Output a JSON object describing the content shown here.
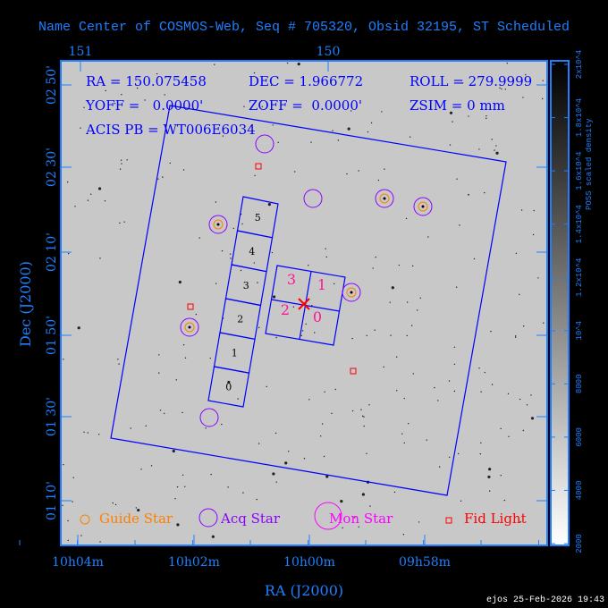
{
  "title": "Name Center of COSMOS-Web, Seq # 705320, Obsid 32195, ST Scheduled",
  "info": {
    "ra": "RA = 150.075458",
    "dec": "DEC = 1.966772",
    "roll": "ROLL = 279.9999",
    "yoff": "YOFF =   0.0000'",
    "zoff": "ZOFF =  0.0000'",
    "zsim": "ZSIM = 0 mm",
    "acis": "ACIS PB = WT006E6034"
  },
  "legend": {
    "guide": "Guide Star",
    "acq": "Acq Star",
    "mon": "Mon Star",
    "fid": "Fid Light"
  },
  "footer": "ejos 25-Feb-2026 19:43",
  "colors": {
    "axis": "#1e7fff",
    "field": "#0000ff",
    "guide": "#ff8000",
    "acq": "#8a00ff",
    "mon": "#ff00ff",
    "fid": "#ff0000"
  },
  "chart_data": {
    "type": "scatter",
    "title": "Name Center of COSMOS-Web, Seq # 705320, Obsid 32195, ST Scheduled",
    "xlabel": "RA (J2000)",
    "ylabel": "Dec (J2000)",
    "x_ticks": [
      "10h04m",
      "10h02m",
      "10h00m",
      "09h58m"
    ],
    "x_top_ticks": [
      "151",
      "150"
    ],
    "y_ticks": [
      "01 10'",
      "01 30'",
      "01 50'",
      "02 10'",
      "02 30'",
      "02 50'"
    ],
    "colorbar": {
      "label": "POSS scaled density",
      "ticks": [
        "2000",
        "4000",
        "6000",
        "8000",
        "10^4",
        "1.2x10^4",
        "1.4x10^4",
        "1.6x10^4",
        "1.8x10^4",
        "2x10^4"
      ],
      "range": [
        2000,
        20000
      ]
    },
    "acis_s_chips": [
      "0",
      "1",
      "2",
      "3",
      "4",
      "5"
    ],
    "acis_i_chips": [
      "0",
      "1",
      "2",
      "3"
    ]
  }
}
